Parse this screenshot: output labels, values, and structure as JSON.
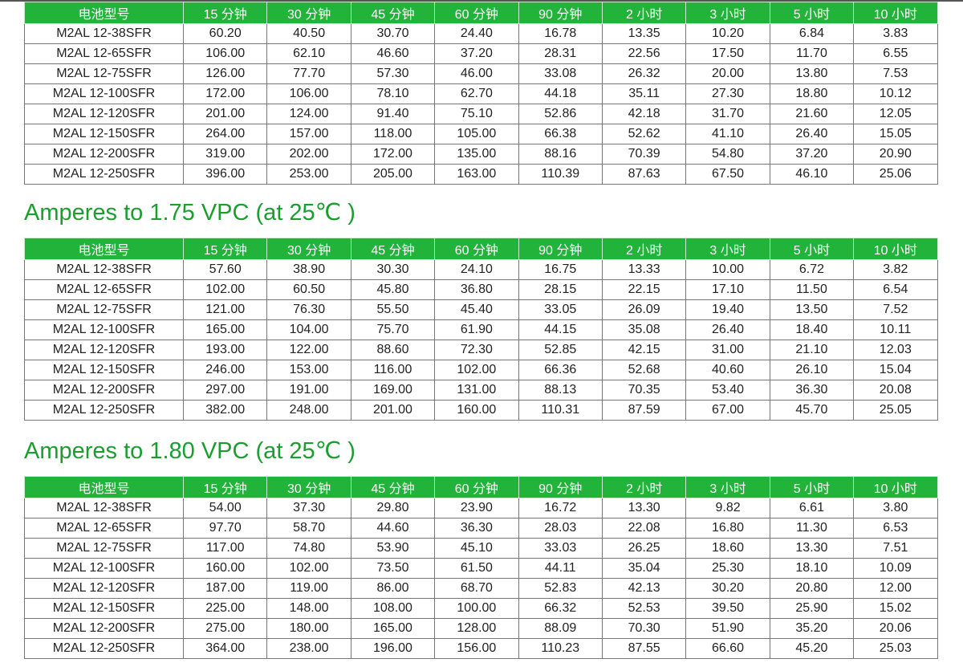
{
  "colors": {
    "header_bg": "#22b33a",
    "title": "#1a9e2e"
  },
  "headers": [
    "电池型号",
    "15 分钟",
    "30 分钟",
    "45 分钟",
    "60 分钟",
    "90 分钟",
    "2 小时",
    "3 小时",
    "5 小时",
    "10 小时"
  ],
  "tables": [
    {
      "title": "",
      "rows": [
        [
          "M2AL 12-38SFR",
          "60.20",
          "40.50",
          "30.70",
          "24.40",
          "16.78",
          "13.35",
          "10.20",
          "6.84",
          "3.83"
        ],
        [
          "M2AL 12-65SFR",
          "106.00",
          "62.10",
          "46.60",
          "37.20",
          "28.31",
          "22.56",
          "17.50",
          "11.70",
          "6.55"
        ],
        [
          "M2AL 12-75SFR",
          "126.00",
          "77.70",
          "57.30",
          "46.00",
          "33.08",
          "26.32",
          "20.00",
          "13.80",
          "7.53"
        ],
        [
          "M2AL 12-100SFR",
          "172.00",
          "106.00",
          "78.10",
          "62.70",
          "44.18",
          "35.11",
          "27.30",
          "18.80",
          "10.12"
        ],
        [
          "M2AL 12-120SFR",
          "201.00",
          "124.00",
          "91.40",
          "75.10",
          "52.86",
          "42.18",
          "31.70",
          "21.60",
          "12.05"
        ],
        [
          "M2AL 12-150SFR",
          "264.00",
          "157.00",
          "118.00",
          "105.00",
          "66.38",
          "52.62",
          "41.10",
          "26.40",
          "15.05"
        ],
        [
          "M2AL 12-200SFR",
          "319.00",
          "202.00",
          "172.00",
          "135.00",
          "88.16",
          "70.39",
          "54.80",
          "37.20",
          "20.90"
        ],
        [
          "M2AL 12-250SFR",
          "396.00",
          "253.00",
          "205.00",
          "163.00",
          "110.39",
          "87.63",
          "67.50",
          "46.10",
          "25.06"
        ]
      ]
    },
    {
      "title": "Amperes to 1.75 VPC (at 25℃ )",
      "rows": [
        [
          "M2AL 12-38SFR",
          "57.60",
          "38.90",
          "30.30",
          "24.10",
          "16.75",
          "13.33",
          "10.00",
          "6.72",
          "3.82"
        ],
        [
          "M2AL 12-65SFR",
          "102.00",
          "60.50",
          "45.80",
          "36.80",
          "28.15",
          "22.15",
          "17.10",
          "11.50",
          "6.54"
        ],
        [
          "M2AL 12-75SFR",
          "121.00",
          "76.30",
          "55.50",
          "45.40",
          "33.05",
          "26.09",
          "19.40",
          "13.50",
          "7.52"
        ],
        [
          "M2AL 12-100SFR",
          "165.00",
          "104.00",
          "75.70",
          "61.90",
          "44.15",
          "35.08",
          "26.40",
          "18.40",
          "10.11"
        ],
        [
          "M2AL 12-120SFR",
          "193.00",
          "122.00",
          "88.60",
          "72.30",
          "52.85",
          "42.15",
          "31.00",
          "21.10",
          "12.03"
        ],
        [
          "M2AL 12-150SFR",
          "246.00",
          "153.00",
          "116.00",
          "102.00",
          "66.36",
          "52.68",
          "40.60",
          "26.10",
          "15.04"
        ],
        [
          "M2AL 12-200SFR",
          "297.00",
          "191.00",
          "169.00",
          "131.00",
          "88.13",
          "70.35",
          "53.40",
          "36.30",
          "20.08"
        ],
        [
          "M2AL 12-250SFR",
          "382.00",
          "248.00",
          "201.00",
          "160.00",
          "110.31",
          "87.59",
          "67.00",
          "45.70",
          "25.05"
        ]
      ]
    },
    {
      "title": "Amperes to 1.80 VPC (at 25℃ )",
      "rows": [
        [
          "M2AL 12-38SFR",
          "54.00",
          "37.30",
          "29.80",
          "23.90",
          "16.72",
          "13.30",
          "9.82",
          "6.61",
          "3.80"
        ],
        [
          "M2AL 12-65SFR",
          "97.70",
          "58.70",
          "44.60",
          "36.30",
          "28.03",
          "22.08",
          "16.80",
          "11.30",
          "6.53"
        ],
        [
          "M2AL 12-75SFR",
          "117.00",
          "74.80",
          "53.90",
          "45.10",
          "33.03",
          "26.25",
          "18.60",
          "13.30",
          "7.51"
        ],
        [
          "M2AL 12-100SFR",
          "160.00",
          "102.00",
          "73.50",
          "61.50",
          "44.11",
          "35.04",
          "25.30",
          "18.10",
          "10.09"
        ],
        [
          "M2AL 12-120SFR",
          "187.00",
          "119.00",
          "86.00",
          "68.70",
          "52.83",
          "42.13",
          "30.20",
          "20.80",
          "12.00"
        ],
        [
          "M2AL 12-150SFR",
          "225.00",
          "148.00",
          "108.00",
          "100.00",
          "66.32",
          "52.53",
          "39.50",
          "25.90",
          "15.02"
        ],
        [
          "M2AL 12-200SFR",
          "275.00",
          "180.00",
          "165.00",
          "128.00",
          "88.09",
          "70.30",
          "51.90",
          "35.20",
          "20.06"
        ],
        [
          "M2AL 12-250SFR",
          "364.00",
          "238.00",
          "196.00",
          "156.00",
          "110.23",
          "87.55",
          "66.60",
          "45.20",
          "25.03"
        ]
      ]
    }
  ]
}
